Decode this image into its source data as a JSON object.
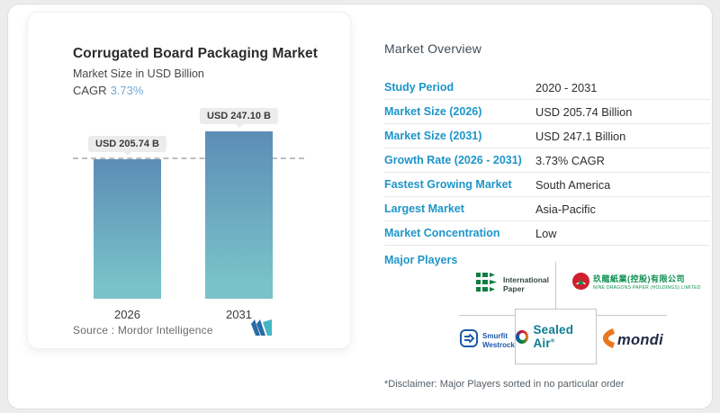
{
  "chart_panel": {
    "title": "Corrugated Board Packaging Market",
    "subtitle": "Market Size in USD Billion",
    "cagr_label": "CAGR",
    "cagr_value": "3.73%",
    "source_label": "Source :",
    "source_value": "Mordor Intelligence"
  },
  "chart_data": {
    "type": "bar",
    "title": "Corrugated Board Packaging Market",
    "subtitle": "Market Size in USD Billion",
    "ylabel": "USD Billion",
    "categories": [
      "2026",
      "2031"
    ],
    "values": [
      205.74,
      247.1
    ],
    "value_labels": [
      "USD 205.74 B",
      "USD 247.10 B"
    ],
    "cagr": "3.73%",
    "reference_line_value": 205.74,
    "bar_gradient_top": "#5c8db6",
    "bar_gradient_bottom": "#79c2c9",
    "grid": "off",
    "legend": "none"
  },
  "overview": {
    "title": "Market Overview",
    "rows": [
      {
        "label": "Study Period",
        "value": "2020 - 2031"
      },
      {
        "label": "Market Size (2026)",
        "value": "USD 205.74 Billion"
      },
      {
        "label": "Market Size (2031)",
        "value": "USD 247.1 Billion"
      },
      {
        "label": "Growth Rate (2026 - 2031)",
        "value": "3.73% CAGR"
      },
      {
        "label": "Fastest Growing Market",
        "value": "South America"
      },
      {
        "label": "Largest Market",
        "value": "Asia-Pacific"
      },
      {
        "label": "Market Concentration",
        "value": "Low"
      }
    ],
    "major_players_label": "Major Players",
    "disclaimer": "*Disclaimer: Major Players sorted in no particular order"
  },
  "major_players": {
    "international_paper": {
      "line1": "International",
      "line2": "Paper"
    },
    "nine_dragons": {
      "cn": "玖龍紙業(控股)有限公司",
      "en": "NINE DRAGONS PAPER (HOLDINGS) LIMITED"
    },
    "sealed_air": {
      "name": "Sealed Air",
      "reg": "®"
    },
    "smurfit_westrock": {
      "line1": "Smurfit",
      "line2": "Westrock"
    },
    "mondi": {
      "name": "mondi"
    }
  },
  "colors": {
    "accent_blue": "#1e95c8",
    "cagr_blue": "#74a9cf",
    "bar_top": "#5c8db6",
    "bar_bottom": "#79c2c9",
    "overview_title": "#414d57"
  }
}
